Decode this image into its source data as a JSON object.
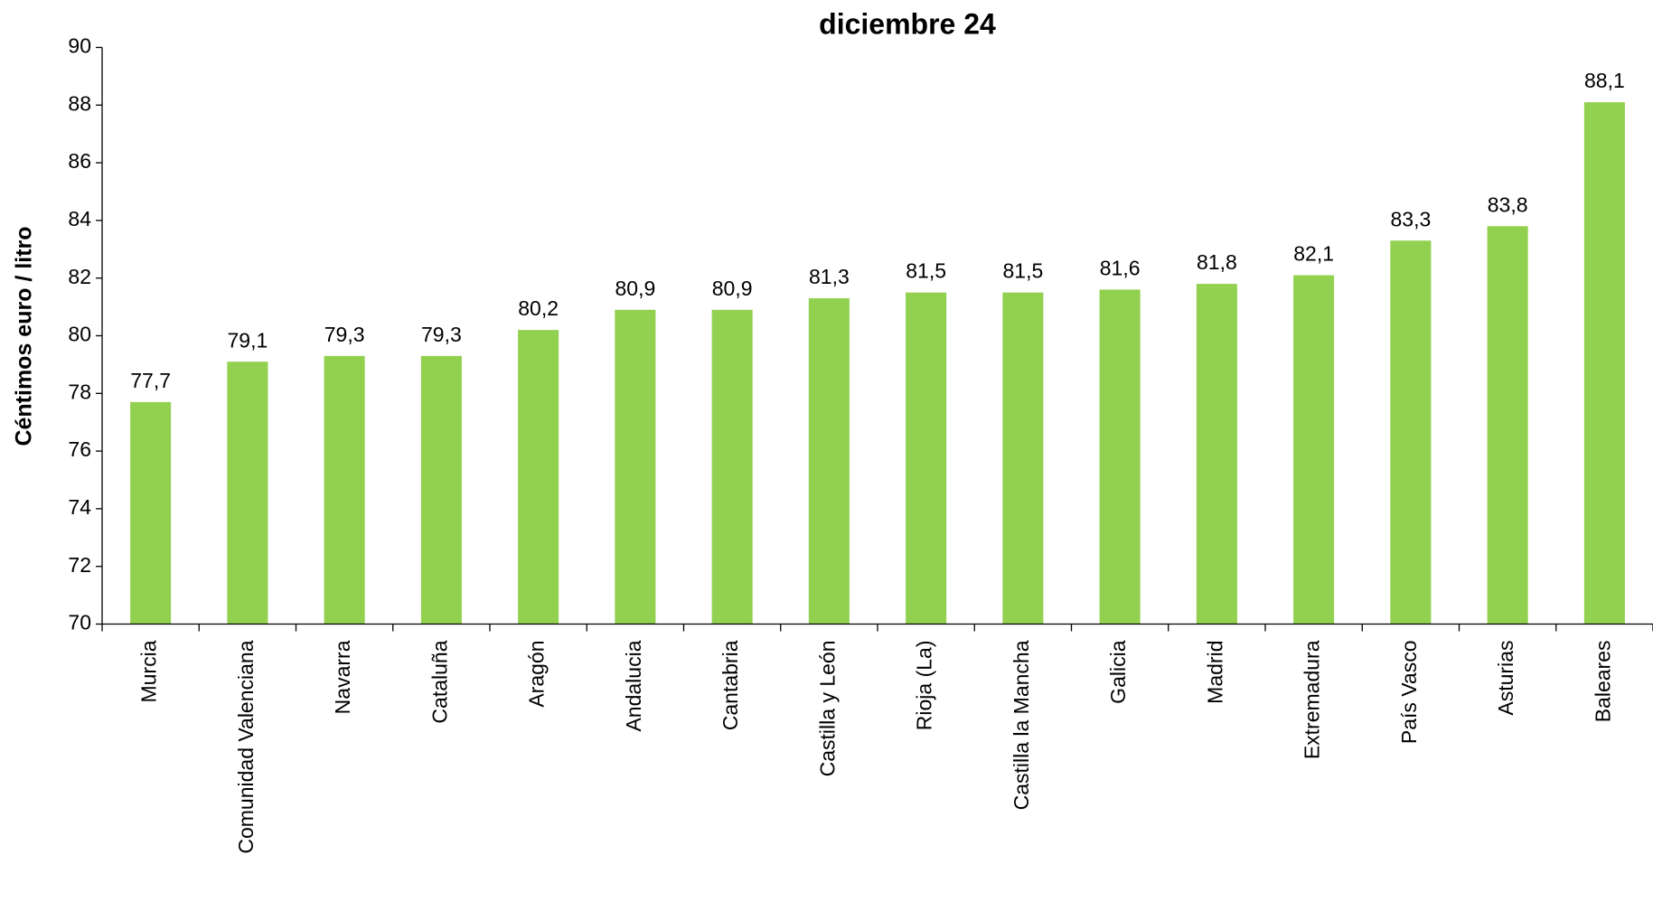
{
  "chart_data": {
    "type": "bar",
    "title": "diciembre 24",
    "y_label": "Céntimos euro / litro",
    "categories": [
      "Murcia",
      "Comunidad Valenciana",
      "Navarra",
      "Cataluña",
      "Aragón",
      "Andalucia",
      "Cantabria",
      "Castilla y León",
      "Rioja (La)",
      "Castilla la Mancha",
      "Galicia",
      "Madrid",
      "Extremadura",
      "País Vasco",
      "Asturias",
      "Baleares"
    ],
    "values": [
      77.7,
      79.1,
      79.3,
      79.3,
      80.2,
      80.9,
      80.9,
      81.3,
      81.5,
      81.5,
      81.6,
      81.8,
      82.1,
      83.3,
      83.8,
      88.1
    ],
    "value_labels": [
      "77,7",
      "79,1",
      "79,3",
      "79,3",
      "80,2",
      "80,9",
      "80,9",
      "81,3",
      "81,5",
      "81,5",
      "81,6",
      "81,8",
      "82,1",
      "83,3",
      "83,8",
      "88,1"
    ],
    "color": "#92d050",
    "ylim": [
      70,
      90
    ],
    "yticks": [
      70,
      72,
      74,
      76,
      78,
      80,
      82,
      84,
      86,
      88,
      90
    ],
    "grid": false
  }
}
